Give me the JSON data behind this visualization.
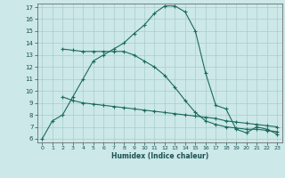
{
  "xlabel": "Humidex (Indice chaleur)",
  "bg_color": "#cce8e8",
  "grid_color": "#aacccc",
  "line_color": "#1a6b5a",
  "xlim": [
    -0.5,
    23.5
  ],
  "ylim": [
    5.7,
    17.3
  ],
  "yticks": [
    6,
    7,
    8,
    9,
    10,
    11,
    12,
    13,
    14,
    15,
    16,
    17
  ],
  "xticks": [
    0,
    1,
    2,
    3,
    4,
    5,
    6,
    7,
    8,
    9,
    10,
    11,
    12,
    13,
    14,
    15,
    16,
    17,
    18,
    19,
    20,
    21,
    22,
    23
  ],
  "curve1_x": [
    0,
    1,
    2,
    3,
    4,
    5,
    6,
    7,
    8,
    9,
    10,
    11,
    12,
    13,
    14,
    15,
    16,
    17,
    18,
    19,
    20,
    21,
    22,
    23
  ],
  "curve1_y": [
    6.0,
    7.5,
    8.0,
    9.5,
    11.0,
    12.5,
    13.0,
    13.5,
    14.0,
    14.8,
    15.5,
    16.5,
    17.1,
    17.1,
    16.6,
    15.0,
    11.5,
    8.8,
    8.5,
    6.8,
    6.5,
    7.0,
    6.8,
    6.4
  ],
  "curve2_x": [
    2,
    3,
    4,
    5,
    6,
    7,
    8,
    9,
    10,
    11,
    12,
    13,
    14,
    15,
    16,
    17,
    18,
    19,
    20,
    21,
    22,
    23
  ],
  "curve2_y": [
    13.5,
    13.4,
    13.3,
    13.3,
    13.3,
    13.3,
    13.3,
    13.0,
    12.5,
    12.0,
    11.3,
    10.3,
    9.2,
    8.2,
    7.5,
    7.2,
    7.0,
    6.9,
    6.8,
    6.8,
    6.7,
    6.6
  ],
  "curve3_x": [
    2,
    3,
    4,
    5,
    6,
    7,
    8,
    9,
    10,
    11,
    12,
    13,
    14,
    15,
    16,
    17,
    18,
    19,
    20,
    21,
    22,
    23
  ],
  "curve3_y": [
    9.5,
    9.2,
    9.0,
    8.9,
    8.8,
    8.7,
    8.6,
    8.5,
    8.4,
    8.3,
    8.2,
    8.1,
    8.0,
    7.9,
    7.8,
    7.7,
    7.5,
    7.4,
    7.3,
    7.2,
    7.1,
    7.0
  ]
}
